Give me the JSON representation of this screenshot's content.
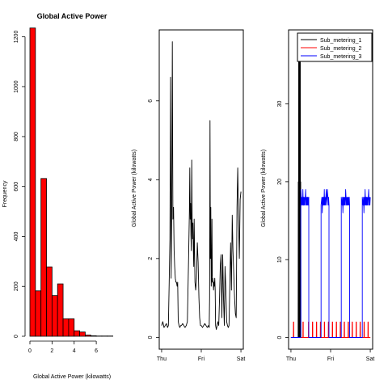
{
  "colors": {
    "hist_fill": "#ff0000",
    "black": "#000000",
    "red": "#ff0000",
    "blue": "#0000ff"
  },
  "chart_data": [
    {
      "type": "bar",
      "title": "Global Active Power",
      "xlabel": "Global Active Power (kilowatts)",
      "ylabel": "Frequency",
      "xlim": [
        0,
        7.6
      ],
      "ylim": [
        0,
        1250
      ],
      "x_ticks": [
        0,
        2,
        4,
        6
      ],
      "x_tick_labels": [
        "0",
        "2",
        "4",
        "6"
      ],
      "y_ticks": [
        0,
        200,
        400,
        600,
        800,
        1000,
        1200
      ],
      "y_tick_labels": [
        "0",
        "200",
        "400",
        "600",
        "800",
        "1000",
        "1200"
      ],
      "bin_width": 0.5,
      "bin_starts": [
        0,
        0.5,
        1,
        1.5,
        2,
        2.5,
        3,
        3.5,
        4,
        4.5,
        5,
        5.5,
        6,
        6.5,
        7
      ],
      "values": [
        1235,
        182,
        632,
        278,
        163,
        210,
        70,
        70,
        22,
        17,
        5,
        2,
        1,
        1,
        1
      ],
      "fill": "red",
      "box": false
    },
    {
      "type": "line",
      "title": "",
      "xlabel": "",
      "ylabel": "Global Active Power (kilowatts)",
      "xlim": [
        -0.06,
        2.06
      ],
      "ylim": [
        -0.3,
        7.8
      ],
      "x_ticks": [
        0,
        1,
        2
      ],
      "x_tick_labels": [
        "Thu",
        "Fri",
        "Sat"
      ],
      "y_ticks": [
        0,
        2,
        4,
        6
      ],
      "y_tick_labels": [
        "0",
        "2",
        "4",
        "6"
      ],
      "series": [
        {
          "color": "black",
          "x": [
            0,
            0.03,
            0.06,
            0.09,
            0.12,
            0.15,
            0.17,
            0.19,
            0.21,
            0.225,
            0.24,
            0.255,
            0.27,
            0.285,
            0.3,
            0.315,
            0.33,
            0.345,
            0.36,
            0.375,
            0.39,
            0.405,
            0.42,
            0.44,
            0.46,
            0.48,
            0.5,
            0.53,
            0.56,
            0.59,
            0.62,
            0.65,
            0.68,
            0.7,
            0.71,
            0.72,
            0.73,
            0.74,
            0.75,
            0.76,
            0.77,
            0.78,
            0.79,
            0.8,
            0.81,
            0.82,
            0.84,
            0.86,
            0.88,
            0.9,
            0.92,
            0.94,
            0.96,
            0.98,
            1.0,
            1.03,
            1.06,
            1.09,
            1.12,
            1.15,
            1.18,
            1.2,
            1.21,
            1.22,
            1.23,
            1.24,
            1.25,
            1.26,
            1.27,
            1.28,
            1.29,
            1.3,
            1.31,
            1.32,
            1.33,
            1.34,
            1.35,
            1.36,
            1.38,
            1.4,
            1.42,
            1.44,
            1.46,
            1.48,
            1.5,
            1.52,
            1.54,
            1.56,
            1.58,
            1.6,
            1.62,
            1.64,
            1.66,
            1.68,
            1.7,
            1.72,
            1.74,
            1.76,
            1.78,
            1.8,
            1.82,
            1.84,
            1.86,
            1.88,
            1.9,
            1.92,
            1.94,
            1.96,
            1.98,
            2.0
          ],
          "y": [
            0.3,
            0.4,
            0.25,
            0.3,
            0.35,
            0.25,
            0.3,
            1.4,
            2.5,
            6.6,
            1.5,
            3.3,
            7.5,
            3.0,
            3.3,
            2.2,
            1.8,
            1.5,
            1.4,
            1.4,
            1.3,
            1.4,
            0.4,
            0.3,
            0.25,
            0.3,
            0.3,
            0.35,
            0.3,
            0.25,
            0.3,
            0.4,
            2.0,
            3.2,
            4.3,
            3.0,
            3.4,
            2.6,
            2.2,
            4.5,
            3.0,
            2.5,
            2.9,
            2.2,
            1.8,
            3.0,
            1.4,
            1.2,
            1.5,
            2.4,
            1.9,
            1.0,
            0.5,
            0.3,
            0.3,
            0.25,
            0.3,
            0.35,
            0.3,
            0.25,
            0.3,
            0.25,
            1.0,
            5.5,
            2.0,
            3.3,
            1.3,
            1.6,
            3.0,
            1.4,
            1.5,
            1.4,
            1.2,
            1.4,
            1.3,
            1.5,
            1.2,
            0.3,
            0.2,
            0.3,
            0.4,
            0.3,
            1.0,
            1.8,
            2.1,
            0.5,
            2.1,
            1.0,
            0.3,
            1.8,
            1.2,
            0.4,
            0.3,
            0.25,
            0.3,
            1.3,
            2.4,
            1.2,
            3.1,
            2.2,
            1.6,
            1.0,
            0.6,
            0.5,
            3.3,
            4.3,
            3.0,
            2.0,
            3.5,
            3.7
          ]
        }
      ],
      "box": true
    },
    {
      "type": "line",
      "title": "",
      "xlabel": "",
      "ylabel": "Global Active Power (kilowatts)",
      "xlim": [
        -0.06,
        2.06
      ],
      "ylim": [
        -1.5,
        39.5
      ],
      "x_ticks": [
        0,
        1,
        2
      ],
      "x_tick_labels": [
        "Thu",
        "Fri",
        "Sat"
      ],
      "y_ticks": [
        0,
        10,
        20,
        30
      ],
      "y_tick_labels": [
        "0",
        "10",
        "20",
        "30"
      ],
      "legend": {
        "position": "top-right",
        "entries": [
          {
            "label": "Sub_metering_1",
            "color": "black"
          },
          {
            "label": "Sub_metering_2",
            "color": "red"
          },
          {
            "label": "Sub_metering_3",
            "color": "blue"
          }
        ]
      },
      "series": [
        {
          "name": "Sub_metering_1",
          "color": "black",
          "x": [
            0,
            0.18,
            0.185,
            0.19,
            0.195,
            0.2,
            0.205,
            0.21,
            0.215,
            0.22,
            0.225,
            0.23,
            0.235,
            0.24,
            0.245,
            0.25,
            0.26,
            0.5,
            1.0,
            1.5,
            2.0
          ],
          "y": [
            0,
            0,
            20,
            0,
            37,
            0,
            18,
            38,
            0,
            25,
            38,
            0,
            36,
            0,
            20,
            0,
            0,
            0,
            0,
            0,
            0
          ]
        },
        {
          "name": "Sub_metering_2",
          "color": "red",
          "x": [
            0,
            0.06,
            0.062,
            0.07,
            0.072,
            0.3,
            0.302,
            0.31,
            0.312,
            0.44,
            0.442,
            0.45,
            0.452,
            0.54,
            0.542,
            0.55,
            0.552,
            0.64,
            0.642,
            0.65,
            0.652,
            0.74,
            0.742,
            0.75,
            0.752,
            0.84,
            0.842,
            0.85,
            0.852,
            0.94,
            0.942,
            0.95,
            0.952,
            1.04,
            1.042,
            1.05,
            1.052,
            1.14,
            1.142,
            1.15,
            1.152,
            1.24,
            1.242,
            1.25,
            1.252,
            1.34,
            1.342,
            1.35,
            1.352,
            1.44,
            1.442,
            1.45,
            1.452,
            1.54,
            1.542,
            1.55,
            1.552,
            1.64,
            1.642,
            1.65,
            1.652,
            1.74,
            1.742,
            1.75,
            1.752,
            1.84,
            1.842,
            1.85,
            1.852,
            1.94,
            1.942,
            1.95,
            1.952,
            2.0
          ],
          "y": [
            0,
            0,
            2,
            2,
            0,
            0,
            2,
            2,
            0,
            0,
            2,
            2,
            0,
            0,
            2,
            2,
            0,
            0,
            2,
            2,
            0,
            0,
            2,
            2,
            0,
            0,
            2,
            2,
            0,
            0,
            2,
            2,
            0,
            0,
            2,
            2,
            0,
            0,
            2,
            2,
            0,
            0,
            2,
            2,
            0,
            0,
            2,
            2,
            0,
            0,
            2,
            2,
            0,
            0,
            2,
            2,
            0,
            0,
            2,
            2,
            0,
            0,
            2,
            2,
            0,
            0,
            2,
            2,
            0,
            0,
            2,
            2,
            0,
            0
          ]
        },
        {
          "name": "Sub_metering_3",
          "color": "blue",
          "x": [
            0,
            0.25,
            0.25,
            0.27,
            0.28,
            0.29,
            0.3,
            0.31,
            0.32,
            0.33,
            0.34,
            0.35,
            0.36,
            0.37,
            0.38,
            0.39,
            0.4,
            0.41,
            0.42,
            0.43,
            0.44,
            0.45,
            0.45,
            0.76,
            0.76,
            0.78,
            0.79,
            0.8,
            0.81,
            0.82,
            0.83,
            0.84,
            0.85,
            0.86,
            0.87,
            0.88,
            0.89,
            0.9,
            0.91,
            0.92,
            0.93,
            0.94,
            0.95,
            0.96,
            0.96,
            1.27,
            1.27,
            1.29,
            1.3,
            1.31,
            1.32,
            1.33,
            1.34,
            1.35,
            1.36,
            1.37,
            1.38,
            1.39,
            1.4,
            1.41,
            1.42,
            1.43,
            1.44,
            1.45,
            1.46,
            1.47,
            1.48,
            1.48,
            1.8,
            1.8,
            1.82,
            1.83,
            1.84,
            1.85,
            1.86,
            1.87,
            1.88,
            1.89,
            1.9,
            1.91,
            1.92,
            1.93,
            1.94,
            1.95,
            1.96,
            1.97,
            1.98,
            1.99,
            2.0
          ],
          "y": [
            0,
            0,
            19,
            17,
            18,
            17,
            19,
            17,
            18,
            17,
            18,
            17,
            18,
            19,
            17,
            18,
            17,
            18,
            17,
            18,
            17,
            18,
            0,
            0,
            17,
            18,
            16,
            18,
            17,
            18,
            17,
            19,
            17,
            18,
            17,
            18,
            19,
            17,
            18,
            19,
            18,
            17,
            18,
            17,
            0,
            0,
            18,
            17,
            18,
            16,
            18,
            17,
            18,
            17,
            18,
            17,
            19,
            18,
            17,
            18,
            17,
            18,
            17,
            18,
            17,
            18,
            17,
            0,
            0,
            18,
            17,
            18,
            16,
            18,
            17,
            19,
            17,
            18,
            17,
            18,
            17,
            18,
            17,
            18,
            19,
            17,
            18,
            17,
            18
          ]
        }
      ],
      "box": true
    }
  ]
}
